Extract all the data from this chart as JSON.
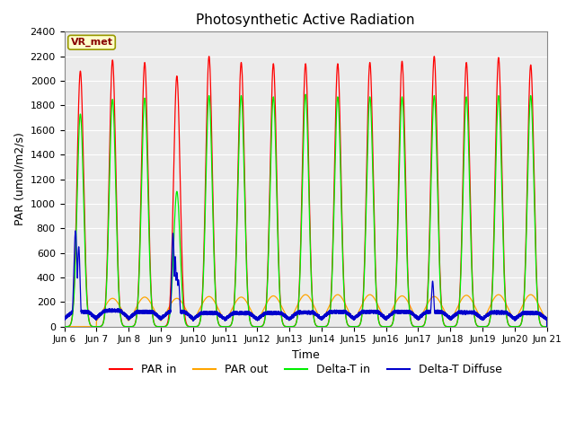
{
  "title": "Photosynthetic Active Radiation",
  "xlabel": "Time",
  "ylabel": "PAR (umol/m2/s)",
  "ylim": [
    0,
    2400
  ],
  "yticks": [
    0,
    200,
    400,
    600,
    800,
    1000,
    1200,
    1400,
    1600,
    1800,
    2000,
    2200,
    2400
  ],
  "num_days": 15,
  "xtick_labels": [
    "Jun 6",
    "Jun 7",
    "Jun 8",
    "Jun 9",
    "Jun10",
    "Jun11",
    "Jun12",
    "Jun13",
    "Jun14",
    "Jun15",
    "Jun16",
    "Jun17",
    "Jun18",
    "Jun19",
    "Jun20",
    "Jun 21"
  ],
  "series_colors": {
    "PAR_in": "#FF0000",
    "PAR_out": "#FFA500",
    "Delta_T_in": "#00EE00",
    "Delta_T_Diffuse": "#0000CC"
  },
  "annotation_label": "VR_met",
  "annotation_box_facecolor": "#FFFFCC",
  "annotation_box_edgecolor": "#999900",
  "annotation_text_color": "#880000",
  "plot_bg_color": "#EBEBEB",
  "fig_bg_color": "#FFFFFF",
  "grid_color": "#FFFFFF",
  "legend_labels": [
    "PAR in",
    "PAR out",
    "Delta-T in",
    "Delta-T Diffuse"
  ],
  "legend_colors": [
    "#FF0000",
    "#FFA500",
    "#00EE00",
    "#0000CC"
  ]
}
